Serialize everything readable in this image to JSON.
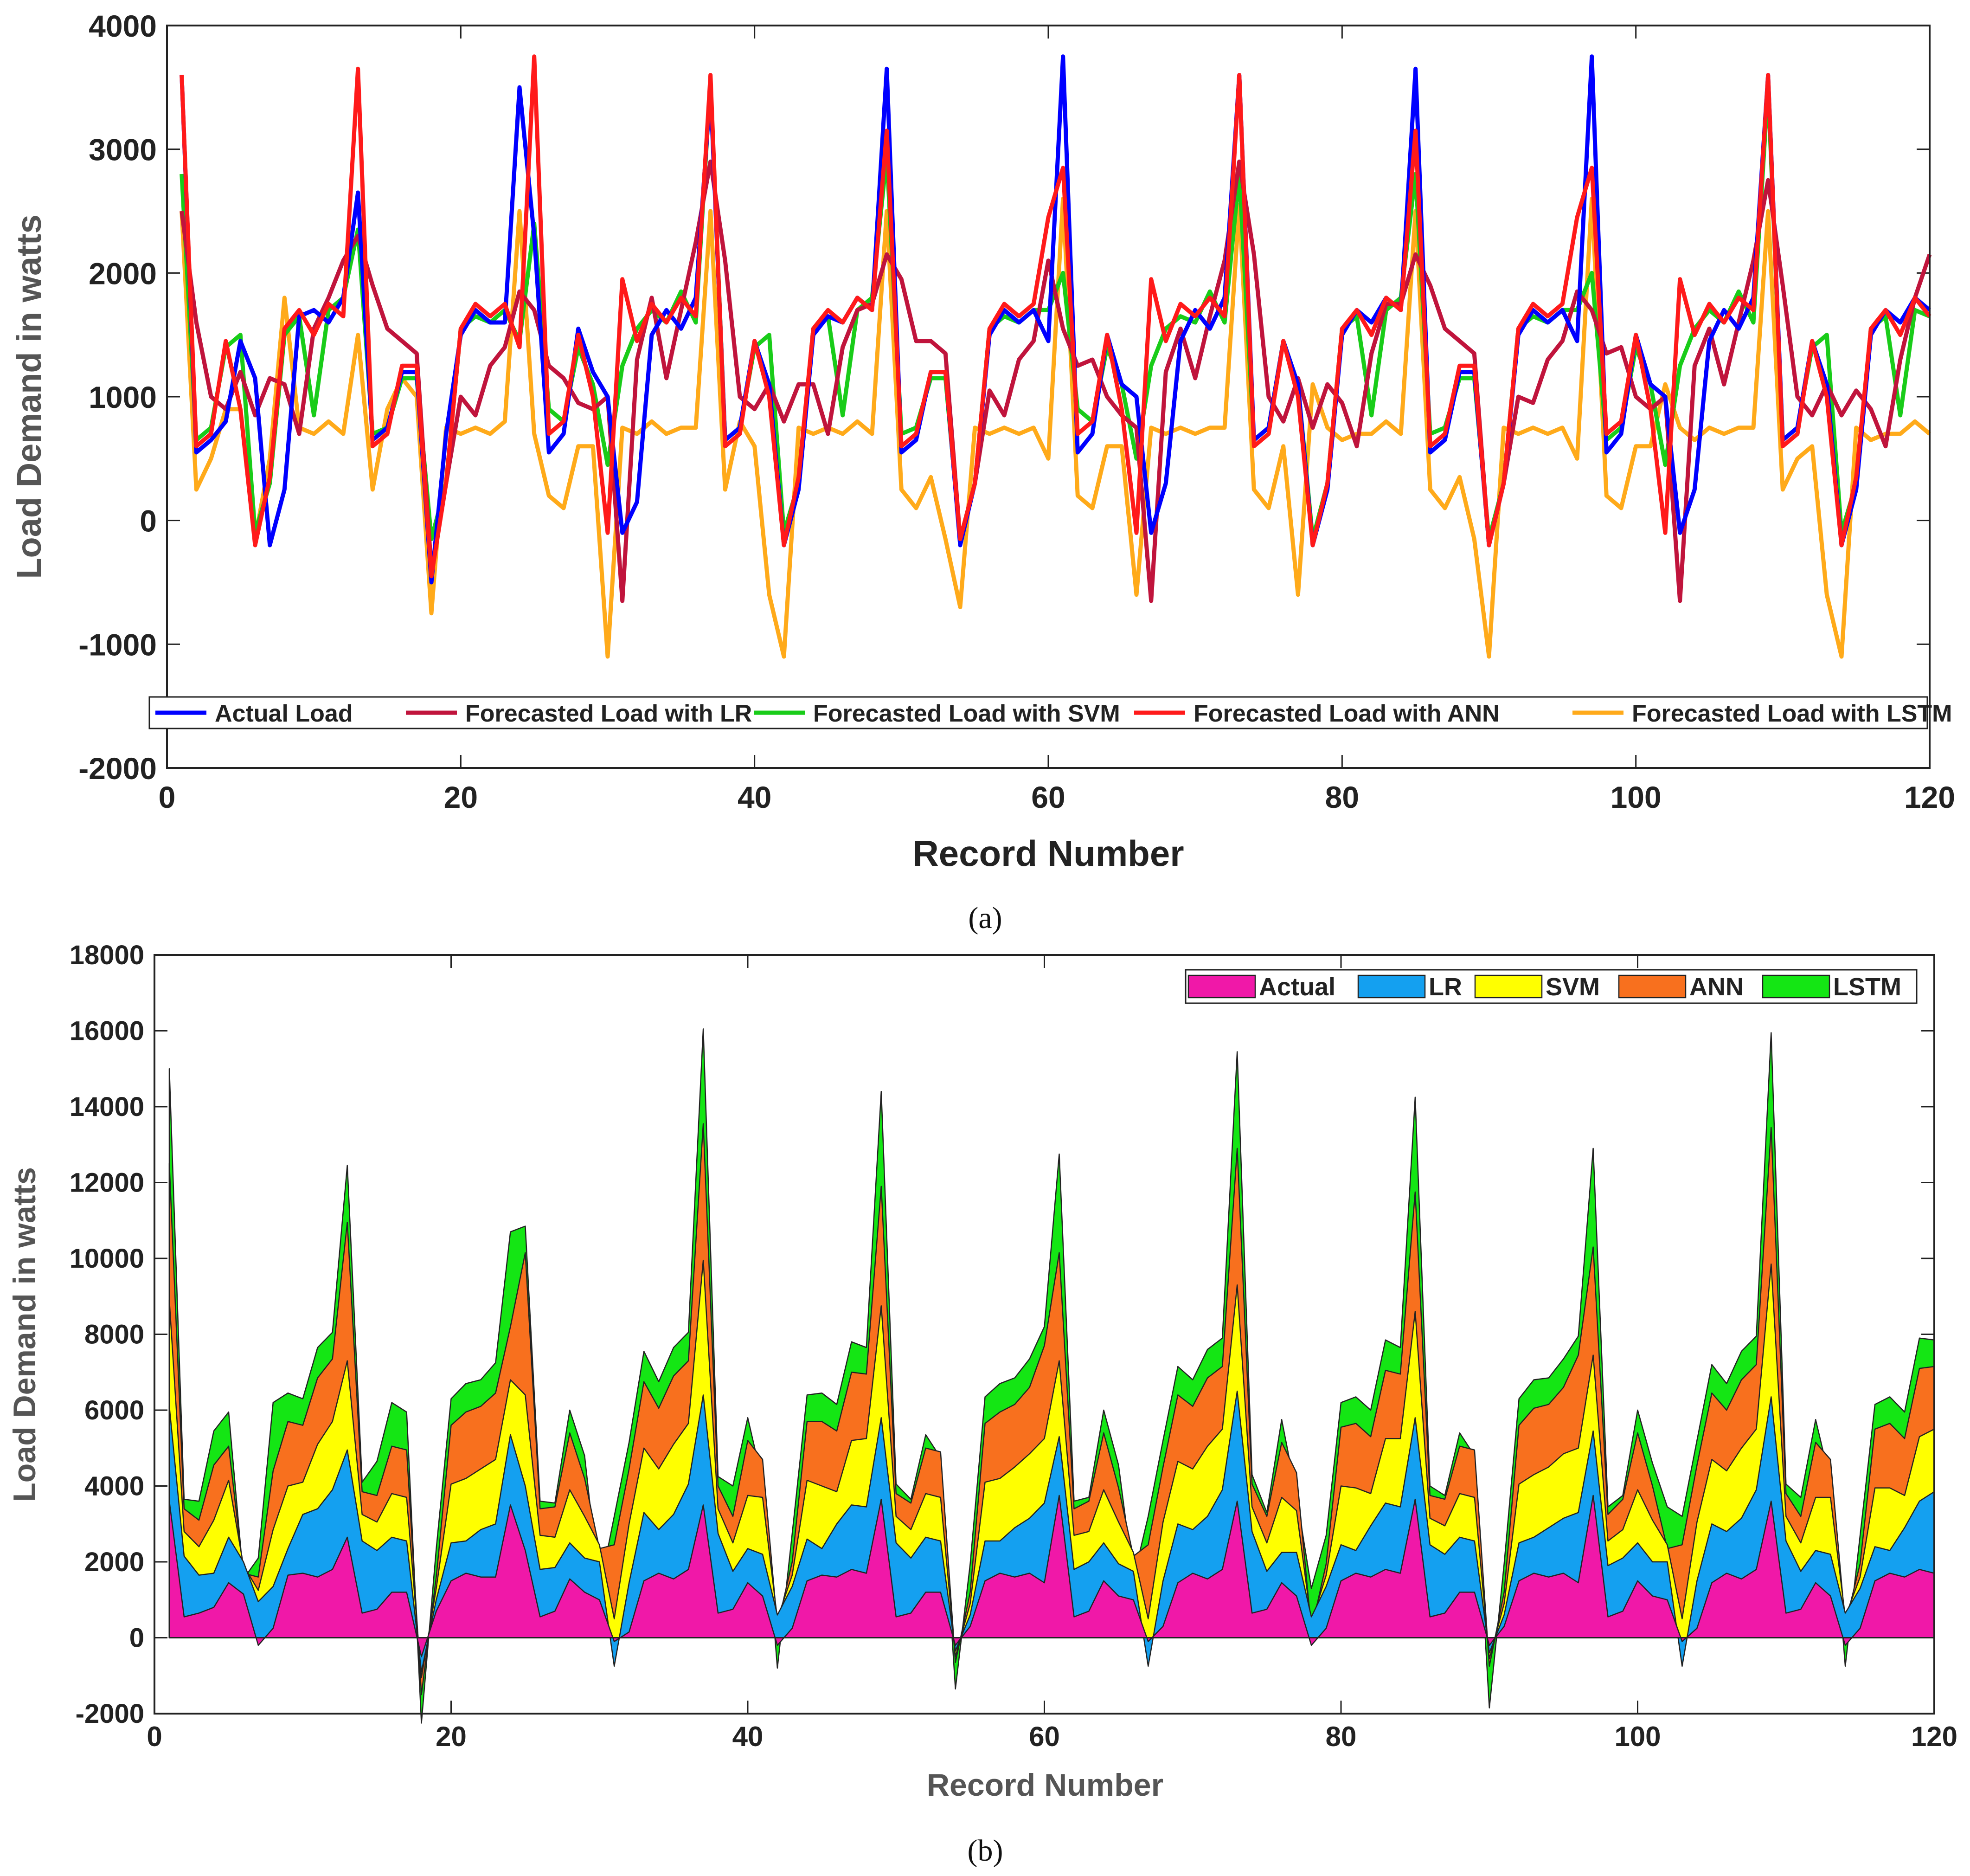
{
  "chart_data": [
    {
      "panel": "a",
      "type": "line",
      "caption": "(a)",
      "xlabel": "Record Number",
      "ylabel": "Load Demand in watts",
      "xlim": [
        0,
        120
      ],
      "ylim": [
        -2000,
        4000
      ],
      "xticks": [
        0,
        20,
        40,
        60,
        80,
        100,
        120
      ],
      "yticks": [
        -2000,
        -1000,
        0,
        1000,
        2000,
        3000,
        4000
      ],
      "legend_position": "bottom",
      "series": [
        {
          "name": "Actual Load",
          "color": "#0000ff",
          "values": [
            3600,
            550,
            650,
            800,
            1450,
            1150,
            -200,
            250,
            1650,
            1700,
            1600,
            1800,
            2650,
            650,
            750,
            1200,
            1200,
            -500,
            700,
            1500,
            1700,
            1600,
            1600,
            3500,
            2300,
            550,
            700,
            1550,
            1200,
            1000,
            -100,
            150,
            1500,
            1700,
            1550,
            1800,
            3500,
            650,
            750,
            1450,
            1100,
            -200,
            250,
            1500,
            1650,
            1600,
            1800,
            1700,
            3650,
            550,
            650,
            1200,
            1200,
            -200,
            300,
            1500,
            1700,
            1600,
            1700,
            1450,
            3750,
            550,
            700,
            1500,
            1100,
            1000,
            -100,
            300,
            1450,
            1700,
            1550,
            1800,
            3600,
            650,
            750,
            1450,
            1100,
            -200,
            250,
            1500,
            1700,
            1600,
            1800,
            1700,
            3650,
            550,
            650,
            1200,
            1200,
            -200,
            300,
            1500,
            1700,
            1600,
            1700,
            1450,
            3750,
            550,
            700,
            1500,
            1100,
            1000,
            -100,
            250,
            1450,
            1700,
            1550,
            1800,
            3600,
            650,
            750,
            1450,
            1100,
            -200,
            250,
            1500,
            1700,
            1600,
            1800,
            1700
          ]
        },
        {
          "name": "Forecasted Load with LR",
          "color": "#c0143c",
          "values": [
            2500,
            1600,
            1000,
            900,
            1200,
            850,
            1150,
            1100,
            700,
            1550,
            1800,
            2100,
            2300,
            1900,
            1550,
            1450,
            1350,
            -400,
            300,
            1000,
            850,
            1250,
            1400,
            1850,
            1700,
            1250,
            1150,
            950,
            900,
            1000,
            -650,
            1300,
            1800,
            1150,
            1700,
            2250,
            2900,
            2100,
            1000,
            900,
            1100,
            800,
            1100,
            1100,
            700,
            1400,
            1700,
            1750,
            2150,
            1950,
            1450,
            1450,
            1350,
            -150,
            300,
            1050,
            850,
            1300,
            1450,
            2100,
            1550,
            1250,
            1300,
            1000,
            850,
            750,
            -650,
            1200,
            1550,
            1150,
            1650,
            2100,
            2900,
            2150,
            1000,
            800,
            1150,
            750,
            1100,
            950,
            600,
            1350,
            1750,
            1750,
            2150,
            1900,
            1550,
            1450,
            1350,
            -200,
            300,
            1000,
            950,
            1300,
            1450,
            1850,
            1700,
            1350,
            1400,
            1000,
            900,
            1000,
            -650,
            1250,
            1550,
            1100,
            1600,
            2100,
            2750,
            1900,
            1000,
            850,
            1100,
            850,
            1050,
            900,
            600,
            1300,
            1800,
            2150
          ]
        },
        {
          "name": "Forecasted Load with SVM",
          "color": "#19cc19",
          "values": [
            2800,
            650,
            750,
            1400,
            1500,
            -100,
            300,
            1500,
            1650,
            850,
            1700,
            1800,
            2350,
            700,
            750,
            1150,
            1150,
            -150,
            300,
            1550,
            1650,
            1600,
            1700,
            1450,
            2400,
            900,
            800,
            1400,
            1100,
            450,
            1250,
            1550,
            1700,
            1600,
            1850,
            1600,
            3550,
            650,
            750,
            1400,
            1500,
            -100,
            300,
            1550,
            1650,
            850,
            1700,
            1800,
            2950,
            700,
            750,
            1150,
            1150,
            -150,
            300,
            1550,
            1650,
            1600,
            1700,
            1700,
            2000,
            900,
            800,
            1400,
            1100,
            500,
            1250,
            1550,
            1650,
            1600,
            1850,
            1600,
            2800,
            650,
            750,
            1450,
            1100,
            -150,
            300,
            1550,
            1650,
            850,
            1700,
            1800,
            2800,
            700,
            750,
            1150,
            1150,
            -150,
            300,
            1550,
            1650,
            1600,
            1700,
            1700,
            2000,
            650,
            750,
            1400,
            1100,
            450,
            1250,
            1550,
            1700,
            1600,
            1850,
            1600,
            3500,
            650,
            750,
            1400,
            1500,
            -100,
            300,
            1550,
            1650,
            850,
            1700,
            1650
          ]
        },
        {
          "name": "Forecasted Load with ANN",
          "color": "#ff1a1a",
          "values": [
            3600,
            600,
            700,
            1450,
            900,
            -200,
            350,
            1550,
            1700,
            1500,
            1750,
            1650,
            3650,
            600,
            700,
            1250,
            1250,
            -450,
            300,
            1550,
            1750,
            1650,
            1750,
            1400,
            3750,
            700,
            800,
            1500,
            1000,
            -100,
            1950,
            1450,
            1750,
            1600,
            1800,
            1650,
            3600,
            600,
            700,
            1450,
            1000,
            -200,
            350,
            1550,
            1700,
            1600,
            1800,
            1700,
            3150,
            600,
            700,
            1200,
            1200,
            -150,
            300,
            1550,
            1750,
            1650,
            1750,
            2450,
            2850,
            700,
            800,
            1500,
            900,
            -100,
            1950,
            1450,
            1750,
            1650,
            1800,
            1650,
            3600,
            600,
            700,
            1450,
            1000,
            -200,
            300,
            1550,
            1700,
            1500,
            1800,
            1700,
            3150,
            600,
            700,
            1250,
            1250,
            -200,
            300,
            1550,
            1750,
            1650,
            1750,
            2450,
            2850,
            700,
            800,
            1500,
            900,
            -100,
            1950,
            1500,
            1750,
            1600,
            1800,
            1700,
            3600,
            600,
            700,
            1450,
            1000,
            -200,
            350,
            1550,
            1700,
            1500,
            1800,
            1650
          ]
        },
        {
          "name": "Forecasted Load with LSTM",
          "color": "#ffaa1a",
          "values": [
            2500,
            250,
            500,
            900,
            900,
            -150,
            500,
            1800,
            750,
            700,
            800,
            700,
            1500,
            250,
            900,
            1150,
            1000,
            -750,
            750,
            700,
            750,
            700,
            800,
            2500,
            700,
            200,
            100,
            600,
            600,
            -1100,
            750,
            700,
            800,
            700,
            750,
            750,
            2500,
            250,
            800,
            600,
            -600,
            -1100,
            750,
            700,
            750,
            700,
            800,
            700,
            2500,
            250,
            100,
            350,
            -150,
            -700,
            750,
            700,
            750,
            700,
            750,
            500,
            2600,
            200,
            100,
            600,
            600,
            -600,
            750,
            700,
            750,
            700,
            750,
            750,
            2550,
            250,
            100,
            600,
            -600,
            1100,
            750,
            650,
            700,
            700,
            800,
            700,
            2500,
            250,
            100,
            350,
            -150,
            -1100,
            750,
            700,
            750,
            700,
            750,
            500,
            2600,
            200,
            100,
            600,
            600,
            1100,
            750,
            650,
            750,
            700,
            750,
            750,
            2500,
            250,
            500,
            600,
            -600,
            -1100,
            750,
            650,
            700,
            700,
            800,
            700
          ]
        }
      ]
    },
    {
      "panel": "b",
      "type": "area",
      "stacked": true,
      "caption": "(b)",
      "xlabel": "Record Number",
      "ylabel": "Load Demand in watts",
      "xlim": [
        0,
        120
      ],
      "ylim": [
        -2000,
        18000
      ],
      "xticks": [
        0,
        20,
        40,
        60,
        80,
        100,
        120
      ],
      "yticks": [
        -2000,
        0,
        2000,
        4000,
        6000,
        8000,
        10000,
        12000,
        14000,
        16000,
        18000
      ],
      "legend_position": "top-right",
      "series": [
        {
          "name": "Actual",
          "color": "#f018a8"
        },
        {
          "name": "LR",
          "color": "#14a0f0"
        },
        {
          "name": "SVM",
          "color": "#ffff00"
        },
        {
          "name": "ANN",
          "color": "#f8701e"
        },
        {
          "name": "LSTM",
          "color": "#14e614"
        }
      ]
    }
  ]
}
